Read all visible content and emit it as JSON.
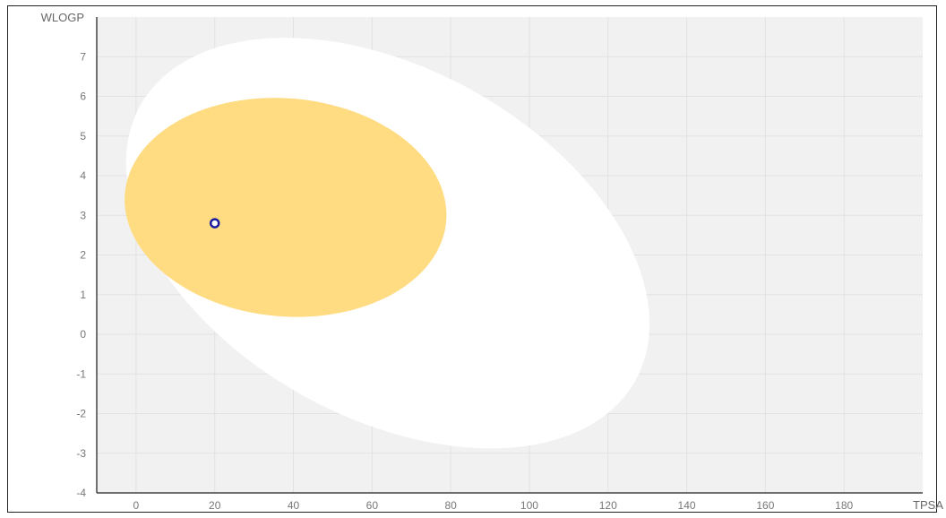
{
  "chart_data": {
    "type": "scatter",
    "xlabel": "TPSA",
    "ylabel": "WLOGP",
    "xlim": [
      -10,
      200
    ],
    "ylim": [
      -4,
      8
    ],
    "x_ticks": [
      0,
      20,
      40,
      60,
      80,
      100,
      120,
      140,
      160,
      180
    ],
    "y_ticks": [
      -4,
      -3,
      -2,
      -1,
      0,
      1,
      2,
      3,
      4,
      5,
      6,
      7
    ],
    "grid": true,
    "regions": [
      {
        "shape": "ellipse",
        "center": [
          64,
          2.3
        ],
        "radii": [
          72,
          4.4
        ],
        "rotation_deg": 29,
        "color": "#ffffff"
      },
      {
        "shape": "ellipse",
        "center": [
          38,
          3.2
        ],
        "radii": [
          41,
          2.75
        ],
        "rotation_deg": 5,
        "color": "#ffdc82"
      }
    ],
    "points": [
      {
        "x": 20,
        "y": 2.8,
        "color": "#1a1aa0"
      }
    ],
    "colors": {
      "plot_background": "#f1f1f1",
      "gridline": "#e2e2e2",
      "axis_line": "#444444"
    }
  }
}
